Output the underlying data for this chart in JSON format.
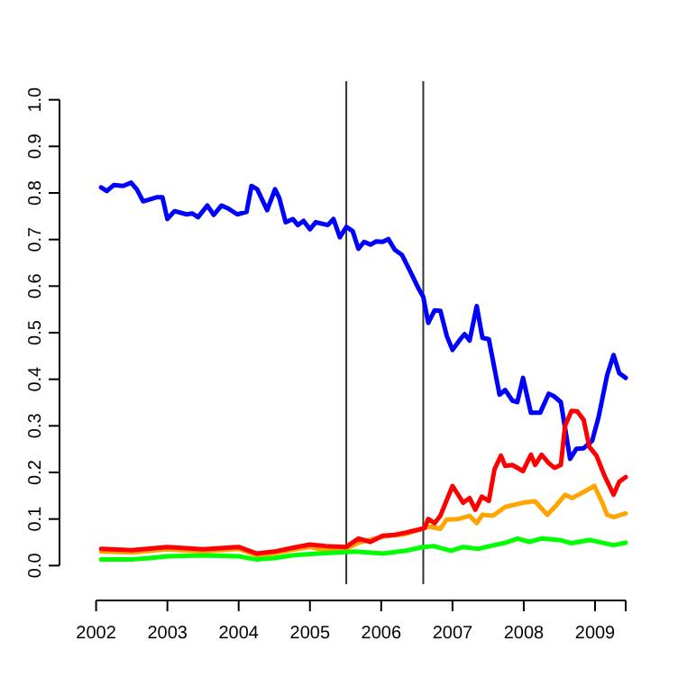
{
  "chart_data": {
    "type": "line",
    "xlim": [
      2002,
      2009.43
    ],
    "ylim": [
      -0.04,
      1.04
    ],
    "xticks": [
      2002,
      2003,
      2004,
      2005,
      2006,
      2007,
      2008,
      2009,
      {
        "value": 2009.43,
        "label": null
      }
    ],
    "yticks": [
      {
        "value": 0,
        "label": "0.0"
      },
      {
        "value": 0.1,
        "label": "0.1"
      },
      {
        "value": 0.2,
        "label": "0.2"
      },
      {
        "value": 0.3,
        "label": "0.3"
      },
      {
        "value": 0.4,
        "label": "0.4"
      },
      {
        "value": 0.5,
        "label": "0.5"
      },
      {
        "value": 0.6,
        "label": "0.6"
      },
      {
        "value": 0.7,
        "label": "0.7"
      },
      {
        "value": 0.8,
        "label": "0.8"
      },
      {
        "value": 0.9,
        "label": "0.9"
      },
      {
        "value": 1,
        "label": "1.0"
      }
    ],
    "grid": false,
    "line_style": "solid",
    "ref_lines": [
      {
        "axis": "x",
        "value": 2005.51,
        "color": "#333333"
      },
      {
        "axis": "x",
        "value": 2006.59,
        "color": "#333333"
      }
    ],
    "series": [
      {
        "color": "#0000ff",
        "x": [
          2002.07,
          2002.15,
          2002.25,
          2002.38,
          2002.49,
          2002.57,
          2002.66,
          2002.86,
          2002.93,
          2003.0,
          2003.1,
          2003.27,
          2003.35,
          2003.43,
          2003.56,
          2003.65,
          2003.76,
          2003.86,
          2003.98,
          2004.11,
          2004.18,
          2004.26,
          2004.4,
          2004.51,
          2004.57,
          2004.66,
          2004.76,
          2004.83,
          2004.91,
          2005.0,
          2005.08,
          2005.25,
          2005.33,
          2005.42,
          2005.51,
          2005.6,
          2005.68,
          2005.76,
          2005.85,
          2005.93,
          2006.02,
          2006.1,
          2006.19,
          2006.29,
          2006.4,
          2006.52,
          2006.59,
          2006.66,
          2006.75,
          2006.83,
          2006.92,
          2007.0,
          2007.11,
          2007.17,
          2007.24,
          2007.34,
          2007.42,
          2007.51,
          2007.66,
          2007.74,
          2007.84,
          2007.91,
          2007.99,
          2008.1,
          2008.23,
          2008.35,
          2008.42,
          2008.52,
          2008.65,
          2008.74,
          2008.84,
          2008.96,
          2009.05,
          2009.17,
          2009.26,
          2009.34,
          2009.43
        ],
        "values": [
          0.812,
          0.804,
          0.817,
          0.815,
          0.822,
          0.808,
          0.782,
          0.791,
          0.791,
          0.744,
          0.761,
          0.754,
          0.756,
          0.748,
          0.773,
          0.753,
          0.773,
          0.766,
          0.754,
          0.759,
          0.815,
          0.808,
          0.763,
          0.808,
          0.789,
          0.737,
          0.744,
          0.731,
          0.74,
          0.722,
          0.737,
          0.731,
          0.744,
          0.705,
          0.727,
          0.718,
          0.68,
          0.695,
          0.689,
          0.696,
          0.695,
          0.701,
          0.678,
          0.667,
          0.634,
          0.596,
          0.577,
          0.521,
          0.548,
          0.547,
          0.493,
          0.463,
          0.486,
          0.497,
          0.483,
          0.557,
          0.489,
          0.486,
          0.367,
          0.377,
          0.354,
          0.351,
          0.403,
          0.328,
          0.328,
          0.369,
          0.364,
          0.351,
          0.229,
          0.251,
          0.252,
          0.268,
          0.319,
          0.409,
          0.452,
          0.413,
          0.403
        ]
      },
      {
        "color": "#ffa500",
        "x": [
          2002.07,
          2002.5,
          2003.0,
          2003.5,
          2004.0,
          2004.25,
          2004.5,
          2004.75,
          2005.0,
          2005.22,
          2005.51,
          2005.68,
          2006.02,
          2006.35,
          2006.61,
          2006.66,
          2006.83,
          2006.92,
          2007.08,
          2007.24,
          2007.34,
          2007.42,
          2007.57,
          2007.74,
          2007.99,
          2008.16,
          2008.33,
          2008.46,
          2008.58,
          2008.68,
          2008.84,
          2008.99,
          2009.09,
          2009.17,
          2009.26,
          2009.43
        ],
        "values": [
          0.03,
          0.028,
          0.035,
          0.03,
          0.036,
          0.022,
          0.026,
          0.034,
          0.04,
          0.032,
          0.036,
          0.049,
          0.062,
          0.068,
          0.081,
          0.084,
          0.079,
          0.099,
          0.1,
          0.107,
          0.091,
          0.109,
          0.107,
          0.126,
          0.135,
          0.138,
          0.109,
          0.13,
          0.152,
          0.145,
          0.158,
          0.171,
          0.139,
          0.109,
          0.104,
          0.112
        ]
      },
      {
        "color": "#ff0000",
        "x": [
          2002.07,
          2002.5,
          2003.0,
          2003.5,
          2004.0,
          2004.25,
          2004.5,
          2004.75,
          2005.0,
          2005.22,
          2005.51,
          2005.68,
          2005.85,
          2006.02,
          2006.19,
          2006.35,
          2006.52,
          2006.61,
          2006.66,
          2006.75,
          2006.83,
          2007.0,
          2007.15,
          2007.24,
          2007.32,
          2007.41,
          2007.51,
          2007.59,
          2007.68,
          2007.74,
          2007.84,
          2007.99,
          2008.1,
          2008.16,
          2008.25,
          2008.35,
          2008.43,
          2008.52,
          2008.58,
          2008.67,
          2008.75,
          2008.84,
          2008.92,
          2009.02,
          2009.13,
          2009.26,
          2009.34,
          2009.43
        ],
        "values": [
          0.036,
          0.033,
          0.04,
          0.035,
          0.04,
          0.026,
          0.03,
          0.038,
          0.045,
          0.042,
          0.04,
          0.058,
          0.051,
          0.064,
          0.066,
          0.071,
          0.077,
          0.081,
          0.1,
          0.091,
          0.107,
          0.171,
          0.135,
          0.145,
          0.12,
          0.148,
          0.139,
          0.207,
          0.236,
          0.214,
          0.216,
          0.203,
          0.238,
          0.216,
          0.238,
          0.22,
          0.21,
          0.216,
          0.3,
          0.332,
          0.331,
          0.313,
          0.255,
          0.236,
          0.194,
          0.152,
          0.18,
          0.19
        ]
      },
      {
        "color": "#00ff00",
        "x": [
          2002.07,
          2002.5,
          2002.75,
          2003.0,
          2003.5,
          2004.0,
          2004.25,
          2004.5,
          2004.75,
          2005.0,
          2005.22,
          2005.64,
          2006.02,
          2006.35,
          2006.56,
          2006.73,
          2006.98,
          2007.15,
          2007.36,
          2007.53,
          2007.74,
          2007.91,
          2008.08,
          2008.25,
          2008.5,
          2008.67,
          2008.92,
          2009.26,
          2009.43
        ],
        "values": [
          0.013,
          0.013,
          0.016,
          0.02,
          0.022,
          0.02,
          0.013,
          0.016,
          0.022,
          0.025,
          0.027,
          0.03,
          0.026,
          0.032,
          0.039,
          0.042,
          0.032,
          0.04,
          0.036,
          0.042,
          0.049,
          0.058,
          0.051,
          0.058,
          0.055,
          0.048,
          0.055,
          0.044,
          0.049
        ]
      }
    ]
  }
}
